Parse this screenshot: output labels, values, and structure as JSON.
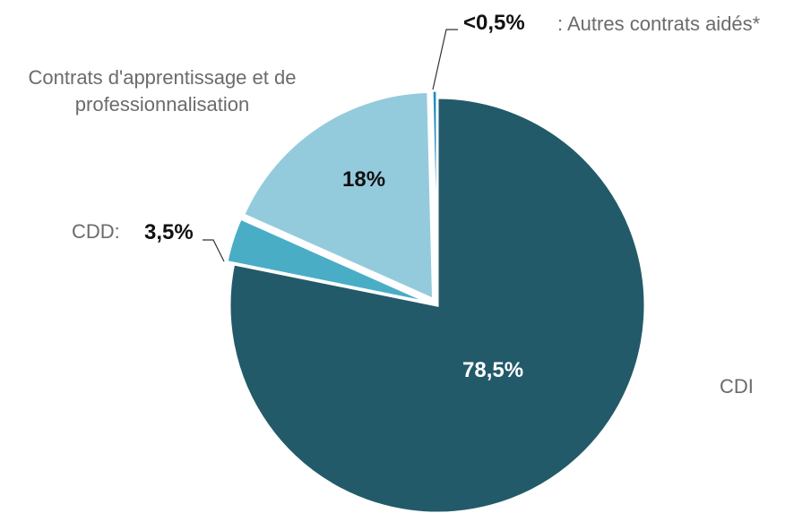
{
  "chart_data": {
    "type": "pie",
    "categories": [
      "CDI",
      "CDD:",
      "Contrats d'apprentissage et de professionnalisation",
      ": Autres contrats aidés*"
    ],
    "values": [
      78.5,
      3.5,
      18,
      0.4
    ],
    "value_labels": [
      "78,5%",
      "3,5%",
      "18%",
      "<0,5%"
    ],
    "colors": [
      "#235a6a",
      "#4aadc6",
      "#94cbdc",
      "#1f8fbf"
    ]
  }
}
